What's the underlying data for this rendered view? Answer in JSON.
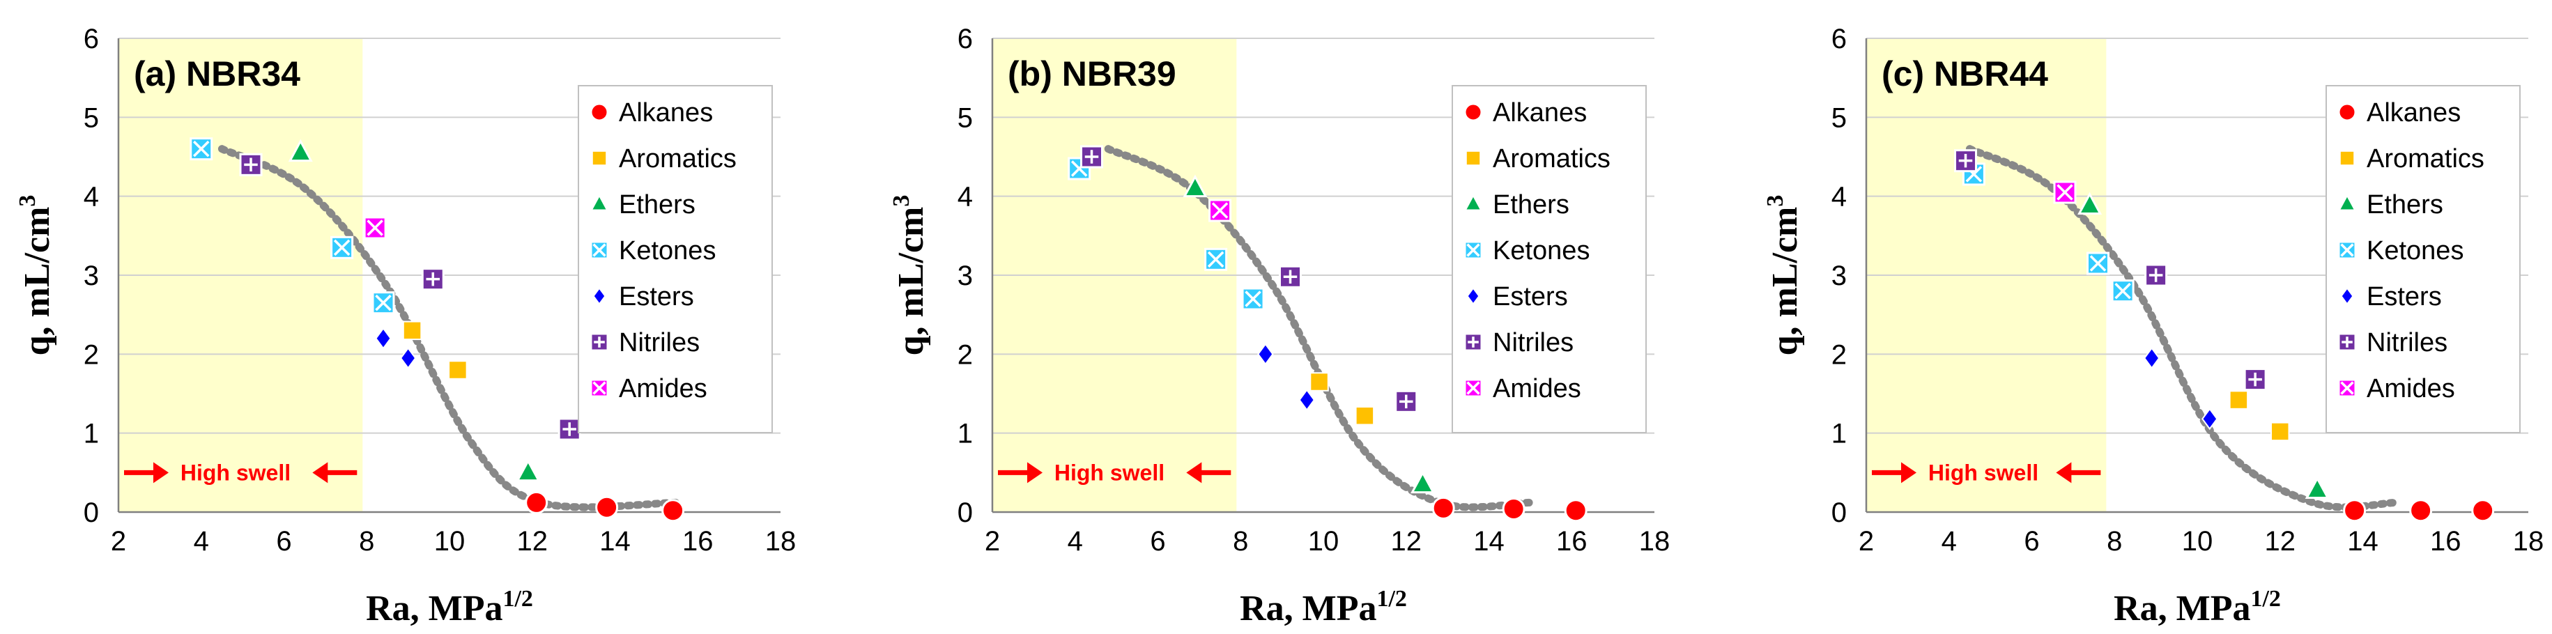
{
  "chart_data": [
    {
      "type": "scatter",
      "title": "(a) NBR34",
      "xlabel": "Ra, MPa",
      "xlabel_sup": "1/2",
      "ylabel": "q, mL/cm",
      "ylabel_sup": "3",
      "xlim": [
        2,
        18
      ],
      "ylim": [
        0,
        6
      ],
      "xticks": [
        "2",
        "4",
        "6",
        "8",
        "10",
        "12",
        "14",
        "16",
        "18"
      ],
      "yticks": [
        "0",
        "1",
        "2",
        "3",
        "4",
        "5",
        "6"
      ],
      "high_swell_label": "High swell",
      "high_swell_xmax": 7.9,
      "legend_position": "top-right",
      "series": [
        {
          "name": "Alkanes",
          "marker": "circle",
          "color": "#ff0000",
          "points": [
            [
              12.1,
              0.12
            ],
            [
              13.8,
              0.06
            ],
            [
              15.4,
              0.02
            ]
          ]
        },
        {
          "name": "Aromatics",
          "marker": "square",
          "color": "#ffc000",
          "points": [
            [
              9.1,
              2.3
            ],
            [
              10.2,
              1.8
            ]
          ]
        },
        {
          "name": "Ethers",
          "marker": "triangle",
          "color": "#00b050",
          "points": [
            [
              6.4,
              4.55
            ],
            [
              11.9,
              0.5
            ]
          ]
        },
        {
          "name": "Ketones",
          "marker": "ketone",
          "color": "#33ccff",
          "points": [
            [
              4.0,
              4.6
            ],
            [
              7.4,
              3.35
            ],
            [
              8.4,
              2.65
            ]
          ]
        },
        {
          "name": "Esters",
          "marker": "diamond",
          "color": "#0000ff",
          "points": [
            [
              8.4,
              2.2
            ],
            [
              9.0,
              1.95
            ]
          ]
        },
        {
          "name": "Nitriles",
          "marker": "nitrile",
          "color": "#7030a0",
          "points": [
            [
              5.2,
              4.4
            ],
            [
              9.6,
              2.95
            ],
            [
              12.9,
              1.05
            ]
          ]
        },
        {
          "name": "Amides",
          "marker": "amide",
          "color": "#ff00ff",
          "points": [
            [
              8.2,
              3.6
            ]
          ]
        }
      ],
      "trend": {
        "x": [
          4.5,
          6.5,
          8.5,
          10.5,
          12.2,
          15.5
        ],
        "y": [
          4.6,
          4.1,
          2.85,
          0.9,
          0.12,
          0.12
        ]
      }
    },
    {
      "type": "scatter",
      "title": "(b) NBR39",
      "xlabel": "Ra, MPa",
      "xlabel_sup": "1/2",
      "ylabel": "q, mL/cm",
      "ylabel_sup": "3",
      "xlim": [
        2,
        18
      ],
      "ylim": [
        0,
        6
      ],
      "xticks": [
        "2",
        "4",
        "6",
        "8",
        "10",
        "12",
        "14",
        "16",
        "18"
      ],
      "yticks": [
        "0",
        "1",
        "2",
        "3",
        "4",
        "5",
        "6"
      ],
      "high_swell_label": "High swell",
      "high_swell_xmax": 7.9,
      "legend_position": "top-right",
      "series": [
        {
          "name": "Alkanes",
          "marker": "circle",
          "color": "#ff0000",
          "points": [
            [
              12.9,
              0.05
            ],
            [
              14.6,
              0.04
            ],
            [
              16.1,
              0.02
            ]
          ]
        },
        {
          "name": "Aromatics",
          "marker": "square",
          "color": "#ffc000",
          "points": [
            [
              9.9,
              1.65
            ],
            [
              11.0,
              1.22
            ]
          ]
        },
        {
          "name": "Ethers",
          "marker": "triangle",
          "color": "#00b050",
          "points": [
            [
              6.9,
              4.1
            ],
            [
              12.4,
              0.35
            ]
          ]
        },
        {
          "name": "Ketones",
          "marker": "ketone",
          "color": "#33ccff",
          "points": [
            [
              4.1,
              4.35
            ],
            [
              7.4,
              3.2
            ],
            [
              8.3,
              2.7
            ]
          ]
        },
        {
          "name": "Esters",
          "marker": "diamond",
          "color": "#0000ff",
          "points": [
            [
              8.6,
              2.0
            ],
            [
              9.6,
              1.42
            ]
          ]
        },
        {
          "name": "Nitriles",
          "marker": "nitrile",
          "color": "#7030a0",
          "points": [
            [
              4.4,
              4.5
            ],
            [
              9.2,
              2.98
            ],
            [
              12.0,
              1.4
            ]
          ]
        },
        {
          "name": "Amides",
          "marker": "amide",
          "color": "#ff00ff",
          "points": [
            [
              7.5,
              3.82
            ]
          ]
        }
      ],
      "trend": {
        "x": [
          4.8,
          6.8,
          8.8,
          10.8,
          12.8,
          15.0
        ],
        "y": [
          4.6,
          4.1,
          2.85,
          0.9,
          0.12,
          0.12
        ]
      }
    },
    {
      "type": "scatter",
      "title": "(c) NBR44",
      "xlabel": "Ra, MPa",
      "xlabel_sup": "1/2",
      "ylabel": "q, mL/cm",
      "ylabel_sup": "3",
      "xlim": [
        2,
        18
      ],
      "ylim": [
        0,
        6
      ],
      "xticks": [
        "2",
        "4",
        "6",
        "8",
        "10",
        "12",
        "14",
        "16",
        "18"
      ],
      "yticks": [
        "0",
        "1",
        "2",
        "3",
        "4",
        "5",
        "6"
      ],
      "high_swell_label": "High swell",
      "high_swell_xmax": 7.8,
      "legend_position": "top-right",
      "series": [
        {
          "name": "Alkanes",
          "marker": "circle",
          "color": "#ff0000",
          "points": [
            [
              13.8,
              0.02
            ],
            [
              15.4,
              0.02
            ],
            [
              16.9,
              0.02
            ]
          ]
        },
        {
          "name": "Aromatics",
          "marker": "square",
          "color": "#ffc000",
          "points": [
            [
              11.0,
              1.42
            ],
            [
              12.0,
              1.02
            ]
          ]
        },
        {
          "name": "Ethers",
          "marker": "triangle",
          "color": "#00b050",
          "points": [
            [
              7.4,
              3.88
            ],
            [
              12.9,
              0.28
            ]
          ]
        },
        {
          "name": "Ketones",
          "marker": "ketone",
          "color": "#33ccff",
          "points": [
            [
              4.6,
              4.28
            ],
            [
              7.6,
              3.15
            ],
            [
              8.2,
              2.8
            ]
          ]
        },
        {
          "name": "Esters",
          "marker": "diamond",
          "color": "#0000ff",
          "points": [
            [
              8.9,
              1.95
            ],
            [
              10.3,
              1.18
            ]
          ]
        },
        {
          "name": "Nitriles",
          "marker": "nitrile",
          "color": "#7030a0",
          "points": [
            [
              4.4,
              4.45
            ],
            [
              9.0,
              3.0
            ],
            [
              11.4,
              1.68
            ]
          ]
        },
        {
          "name": "Amides",
          "marker": "amide",
          "color": "#ff00ff",
          "points": [
            [
              6.8,
              4.05
            ]
          ]
        }
      ],
      "trend": {
        "x": [
          4.5,
          6.5,
          8.5,
          10.5,
          12.8,
          14.8
        ],
        "y": [
          4.6,
          4.1,
          2.85,
          0.9,
          0.12,
          0.12
        ]
      }
    }
  ]
}
